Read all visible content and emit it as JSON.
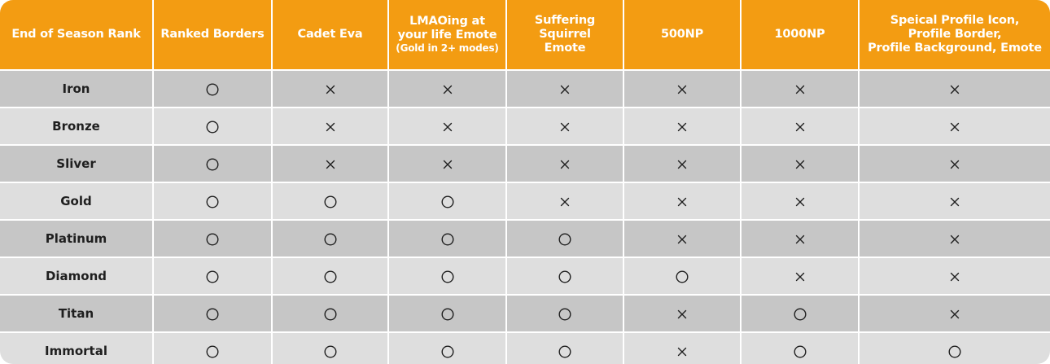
{
  "table": {
    "headers": [
      {
        "lines": [
          "End of Season Rank"
        ]
      },
      {
        "lines": [
          "Ranked Borders"
        ]
      },
      {
        "lines": [
          "Cadet Eva"
        ]
      },
      {
        "lines": [
          "LMAOing at",
          "your life Emote"
        ],
        "note": "(Gold in 2+ modes)"
      },
      {
        "lines": [
          "Suffering Squirrel",
          "Emote"
        ]
      },
      {
        "lines": [
          "500NP"
        ]
      },
      {
        "lines": [
          "1000NP"
        ]
      },
      {
        "lines": [
          "Speical Profile Icon,",
          "Profile Border,",
          "Profile Background, Emote"
        ]
      }
    ],
    "rows": [
      {
        "rank": "Iron",
        "rewards": [
          "circle",
          "cross",
          "cross",
          "cross",
          "cross",
          "cross",
          "cross"
        ]
      },
      {
        "rank": "Bronze",
        "rewards": [
          "circle",
          "cross",
          "cross",
          "cross",
          "cross",
          "cross",
          "cross"
        ]
      },
      {
        "rank": "Sliver",
        "rewards": [
          "circle",
          "cross",
          "cross",
          "cross",
          "cross",
          "cross",
          "cross"
        ]
      },
      {
        "rank": "Gold",
        "rewards": [
          "circle",
          "circle",
          "circle",
          "cross",
          "cross",
          "cross",
          "cross"
        ]
      },
      {
        "rank": "Platinum",
        "rewards": [
          "circle",
          "circle",
          "circle",
          "circle",
          "cross",
          "cross",
          "cross"
        ]
      },
      {
        "rank": "Diamond",
        "rewards": [
          "circle",
          "circle",
          "circle",
          "circle",
          "circle",
          "cross",
          "cross"
        ]
      },
      {
        "rank": "Titan",
        "rewards": [
          "circle",
          "circle",
          "circle",
          "circle",
          "cross",
          "circle",
          "cross"
        ]
      },
      {
        "rank": "Immortal",
        "rewards": [
          "circle",
          "circle",
          "circle",
          "circle",
          "cross",
          "circle",
          "circle"
        ]
      }
    ]
  },
  "colors": {
    "header_bg": "#f39c12",
    "header_text": "#ffffff",
    "row_dark": "#c6c6c6",
    "row_light": "#dedede",
    "mark": "#1f1f1f"
  }
}
